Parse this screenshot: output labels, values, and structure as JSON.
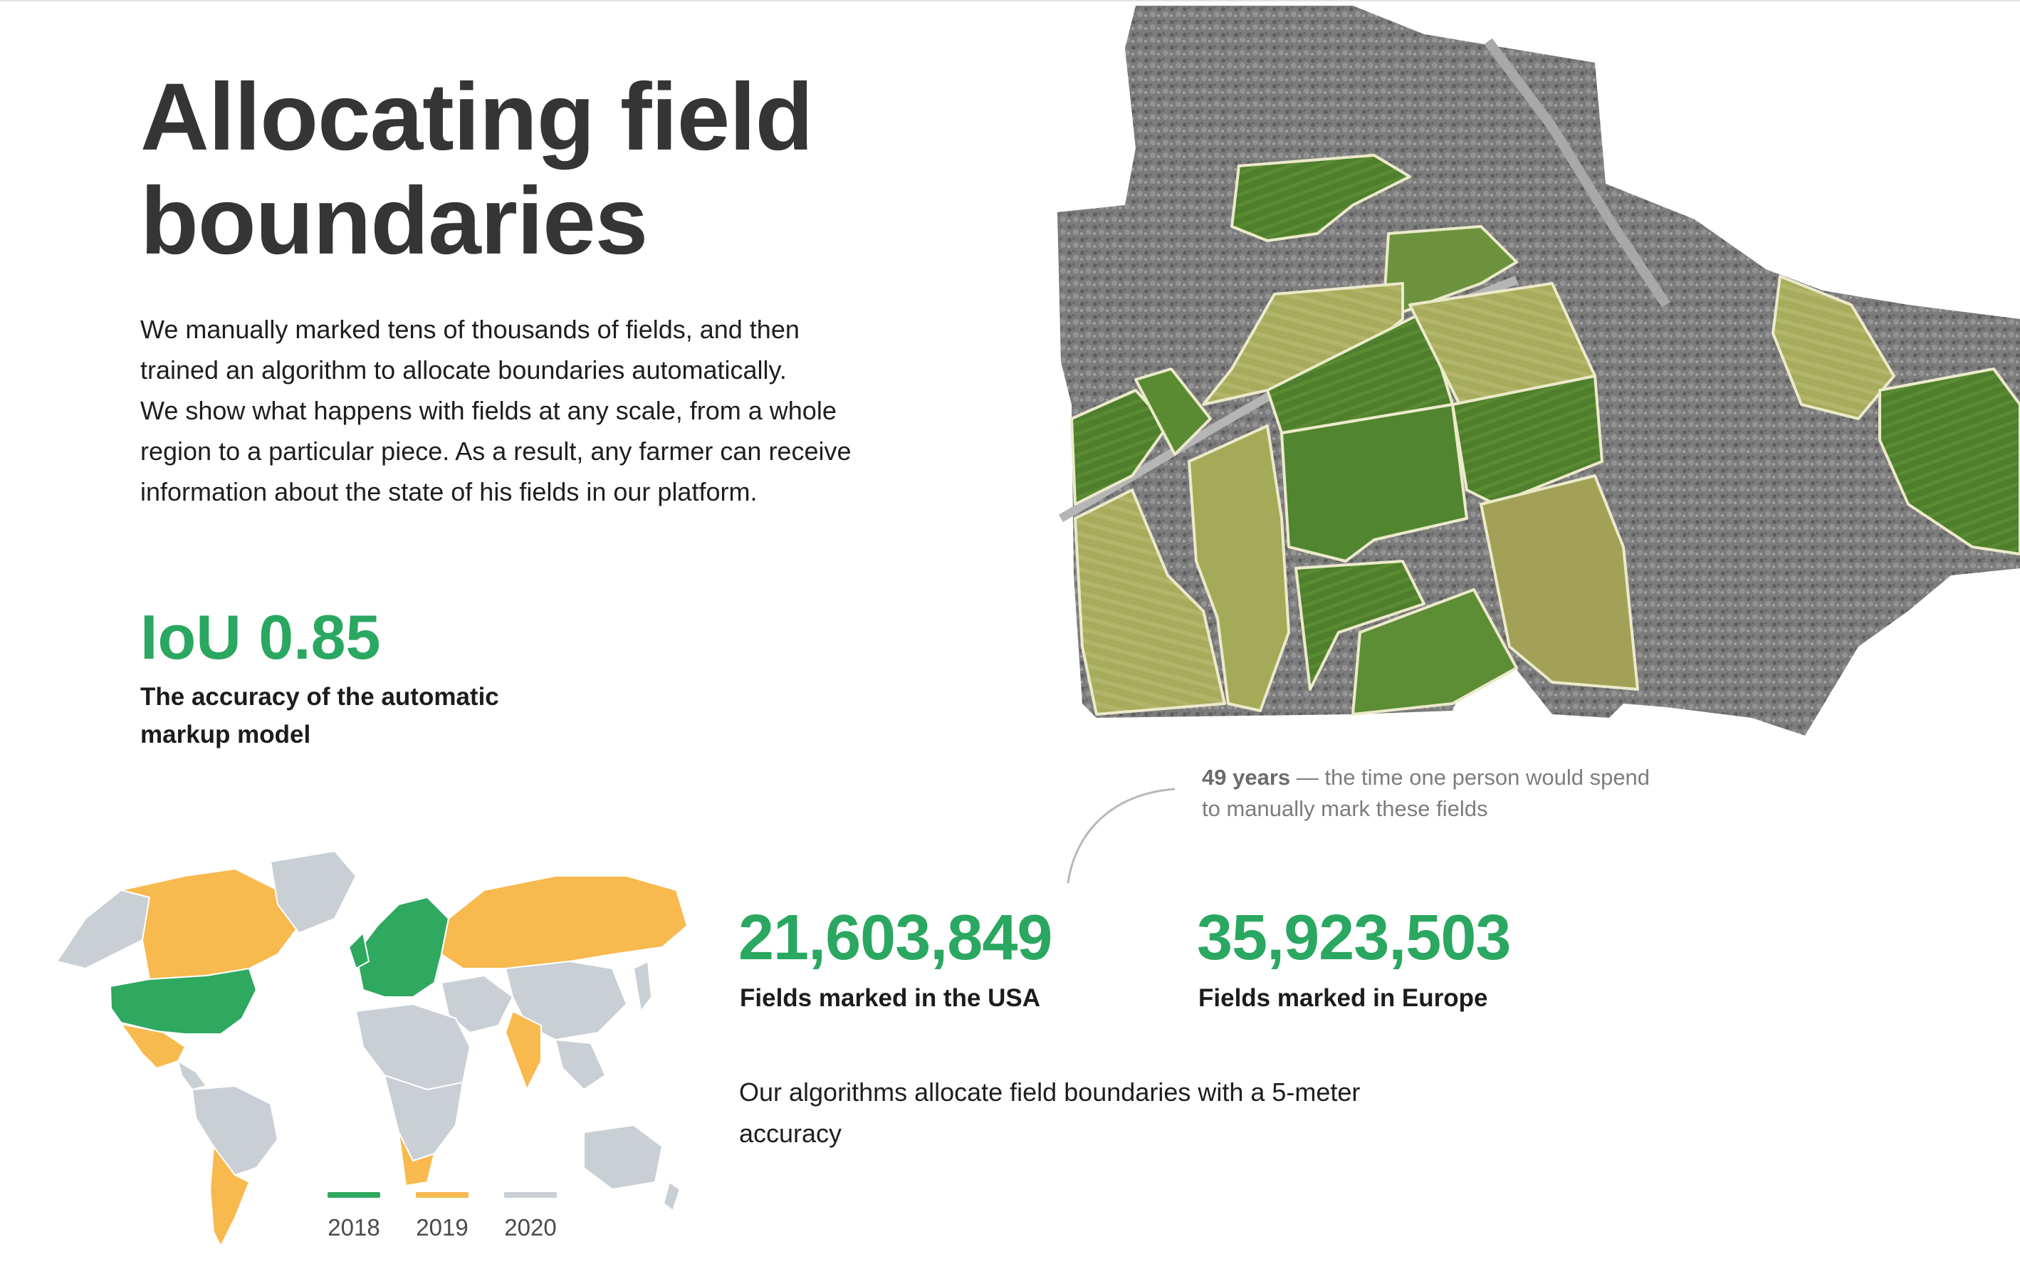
{
  "page": {
    "title": "Allocating field boundaries",
    "intro_lines": [
      "We manually marked tens of thousands of fields, and then",
      "trained an algorithm to allocate boundaries automatically.",
      "We show what happens with fields at any scale, from a whole",
      "region to a particular piece. As a result, any farmer can receive",
      "information about the state of his fields in our platform."
    ]
  },
  "metric": {
    "value": "IoU 0.85",
    "caption_line1": "The accuracy of the automatic",
    "caption_line2": "markup model"
  },
  "callout": {
    "highlight": "49 years",
    "text_line1": " — the time one person would spend",
    "text_line2": "to manually mark these fields"
  },
  "stats": [
    {
      "value": "21,603,849",
      "label": "Fields marked in the USA"
    },
    {
      "value": "35,923,503",
      "label": "Fields marked in Europe"
    }
  ],
  "footnote_lines": [
    "Our algorithms allocate field boundaries with a 5-meter",
    "accuracy"
  ],
  "legend": [
    {
      "label": "2018",
      "color": "#2fa860"
    },
    {
      "label": "2019",
      "color": "#f8b94f"
    },
    {
      "label": "2020",
      "color": "#c9cfd4"
    }
  ],
  "colors": {
    "accent_green": "#2aa760",
    "map_2018": "#2fa860",
    "map_2019": "#f8b94f",
    "map_2020": "#c9cfd4",
    "field_dark": "#4f7f2c",
    "field_light": "#a7ac5c",
    "satellite_gray": "#7a7a7a"
  }
}
